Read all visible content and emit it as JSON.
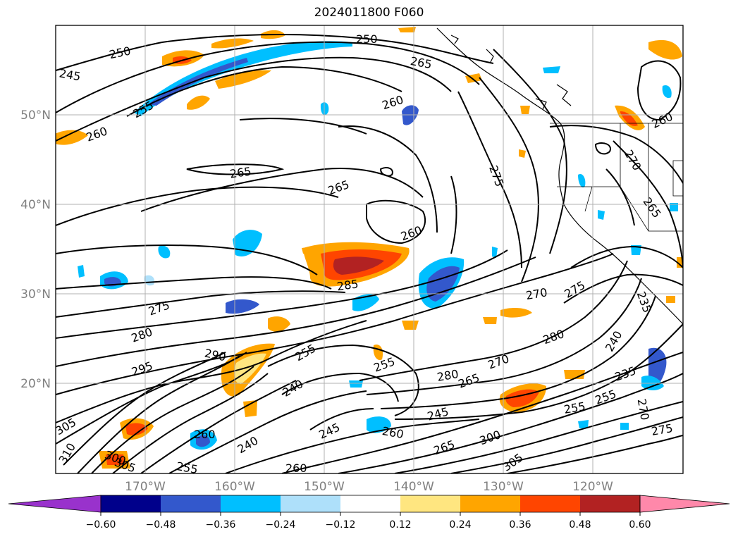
{
  "title": "2024011800 F060",
  "map": {
    "lat_ticks": [
      "50°N",
      "40°N",
      "30°N",
      "20°N"
    ],
    "lon_ticks": [
      "170°W",
      "160°W",
      "150°W",
      "140°W",
      "130°W",
      "120°W"
    ],
    "contour_labels": [
      "250",
      "250",
      "245",
      "255",
      "265",
      "260",
      "260",
      "260",
      "265",
      "265",
      "275",
      "270",
      "265",
      "260",
      "285",
      "275",
      "280",
      "270",
      "275",
      "280",
      "295",
      "290",
      "255",
      "240",
      "255",
      "280",
      "265",
      "270",
      "240",
      "235",
      "245",
      "305",
      "310",
      "300",
      "305",
      "255",
      "260",
      "240",
      "245",
      "260",
      "265",
      "300",
      "305",
      "255",
      "255",
      "270",
      "275",
      "260",
      "235"
    ]
  },
  "colorbar": {
    "ticks": [
      "−0.60",
      "−0.48",
      "−0.36",
      "−0.24",
      "−0.12",
      "0.12",
      "0.24",
      "0.36",
      "0.48",
      "0.60"
    ],
    "colors": [
      "#9932cc",
      "#00008b",
      "#3358cc",
      "#00bfff",
      "#aee0fa",
      "#ffffff",
      "#ffe680",
      "#ffa500",
      "#ff4500",
      "#b22222",
      "#ff88aa"
    ]
  }
}
